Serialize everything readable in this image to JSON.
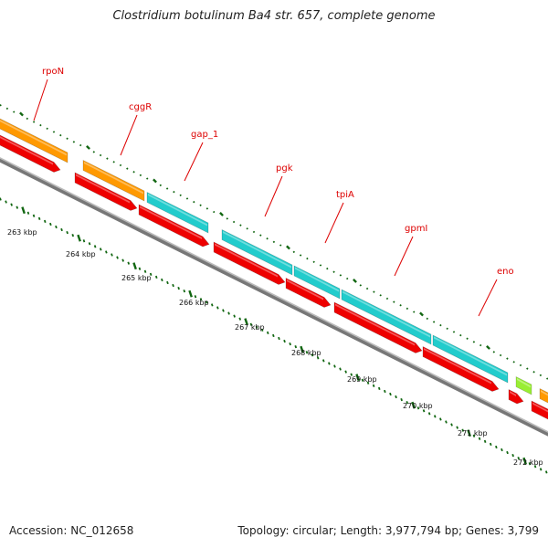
{
  "title": "Clostridium botulinum Ba4 str. 657, complete genome",
  "footer": {
    "accession": "Accession: NC_012658",
    "summary": "Topology: circular; Length: 3,977,794 bp; Genes: 3,799"
  },
  "colors": {
    "cds_red": "#ee0000",
    "orange": "#ff9900",
    "cyan": "#22cccc",
    "lime": "#99ee33",
    "backbone": "#888888",
    "tick_green": "#116611",
    "label_red": "#dd0000"
  },
  "genes": [
    {
      "name": "rpoN"
    },
    {
      "name": "cggR"
    },
    {
      "name": "gap_1"
    },
    {
      "name": "pgk"
    },
    {
      "name": "tpiA"
    },
    {
      "name": "gpmI"
    },
    {
      "name": "eno"
    }
  ],
  "kbp_labels": [
    "263 kbp",
    "264 kbp",
    "265 kbp",
    "266 kbp",
    "267 kbp",
    "268 kbp",
    "269 kbp",
    "270 kbp",
    "271 kbp",
    "272 kbp"
  ]
}
